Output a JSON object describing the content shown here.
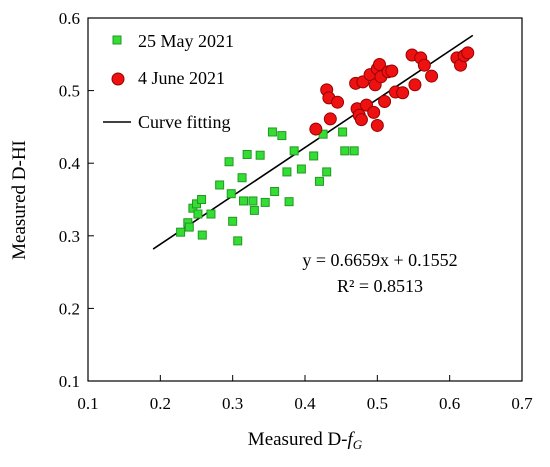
{
  "chart_data": {
    "type": "scatter",
    "xlabel_main": "Measured D-",
    "xlabel_italic": "f",
    "xlabel_sub": "G",
    "ylabel": "Measured D-HI",
    "xlim": [
      0.1,
      0.7
    ],
    "ylim": [
      0.1,
      0.6
    ],
    "xticks": [
      "0.1",
      "0.2",
      "0.3",
      "0.4",
      "0.5",
      "0.6",
      "0.7"
    ],
    "yticks": [
      "0.1",
      "0.2",
      "0.3",
      "0.4",
      "0.5",
      "0.6"
    ],
    "grid": false,
    "legend_placement": "top-left",
    "series": [
      {
        "name": "25 May 2021",
        "marker": "square",
        "color": "#33dd33",
        "edge_color": "#229922",
        "points": [
          [
            0.228,
            0.305
          ],
          [
            0.238,
            0.318
          ],
          [
            0.24,
            0.312
          ],
          [
            0.245,
            0.338
          ],
          [
            0.25,
            0.344
          ],
          [
            0.252,
            0.33
          ],
          [
            0.257,
            0.35
          ],
          [
            0.258,
            0.301
          ],
          [
            0.27,
            0.33
          ],
          [
            0.282,
            0.37
          ],
          [
            0.295,
            0.402
          ],
          [
            0.298,
            0.358
          ],
          [
            0.3,
            0.32
          ],
          [
            0.307,
            0.293
          ],
          [
            0.313,
            0.38
          ],
          [
            0.315,
            0.348
          ],
          [
            0.32,
            0.412
          ],
          [
            0.328,
            0.348
          ],
          [
            0.33,
            0.335
          ],
          [
            0.338,
            0.411
          ],
          [
            0.345,
            0.346
          ],
          [
            0.355,
            0.443
          ],
          [
            0.358,
            0.361
          ],
          [
            0.368,
            0.438
          ],
          [
            0.375,
            0.388
          ],
          [
            0.378,
            0.347
          ],
          [
            0.385,
            0.417
          ],
          [
            0.395,
            0.392
          ],
          [
            0.412,
            0.41
          ],
          [
            0.42,
            0.375
          ],
          [
            0.425,
            0.44
          ],
          [
            0.43,
            0.388
          ],
          [
            0.452,
            0.443
          ],
          [
            0.455,
            0.417
          ],
          [
            0.468,
            0.417
          ]
        ]
      },
      {
        "name": "4 June 2021",
        "marker": "circle",
        "color": "#ee1111",
        "edge_color": "#990000",
        "points": [
          [
            0.415,
            0.447
          ],
          [
            0.43,
            0.501
          ],
          [
            0.433,
            0.49
          ],
          [
            0.435,
            0.461
          ],
          [
            0.445,
            0.484
          ],
          [
            0.47,
            0.51
          ],
          [
            0.472,
            0.475
          ],
          [
            0.475,
            0.466
          ],
          [
            0.478,
            0.46
          ],
          [
            0.48,
            0.512
          ],
          [
            0.485,
            0.48
          ],
          [
            0.49,
            0.522
          ],
          [
            0.495,
            0.47
          ],
          [
            0.497,
            0.508
          ],
          [
            0.5,
            0.452
          ],
          [
            0.5,
            0.53
          ],
          [
            0.503,
            0.536
          ],
          [
            0.505,
            0.519
          ],
          [
            0.51,
            0.485
          ],
          [
            0.515,
            0.526
          ],
          [
            0.52,
            0.527
          ],
          [
            0.525,
            0.498
          ],
          [
            0.535,
            0.497
          ],
          [
            0.548,
            0.549
          ],
          [
            0.552,
            0.508
          ],
          [
            0.56,
            0.545
          ],
          [
            0.565,
            0.535
          ],
          [
            0.575,
            0.52
          ],
          [
            0.61,
            0.545
          ],
          [
            0.615,
            0.535
          ],
          [
            0.62,
            0.548
          ],
          [
            0.625,
            0.552
          ]
        ]
      }
    ],
    "fit_line": {
      "name": "Curve fitting",
      "color": "#000000",
      "x": [
        0.19,
        0.632
      ],
      "slope": 0.6659,
      "intercept": 0.1552
    },
    "annotations": {
      "equation": "y = 0.6659x + 0.1552",
      "r_squared": "R² = 0.8513"
    }
  }
}
